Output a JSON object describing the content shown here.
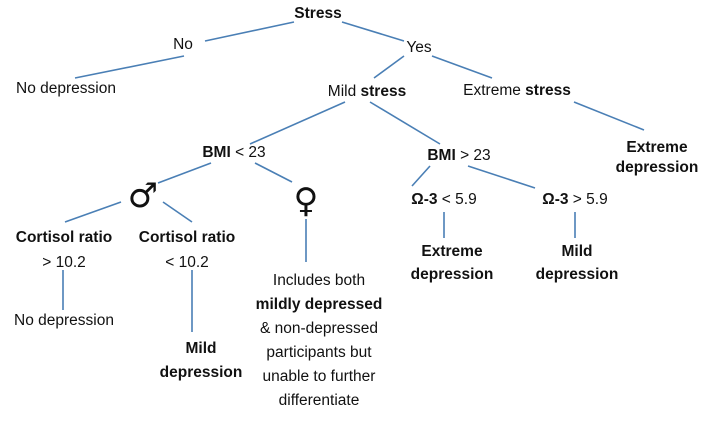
{
  "root": {
    "label": "Stress"
  },
  "no_branch": {
    "label": "No",
    "outcome": "No depression"
  },
  "yes_branch": {
    "label": "Yes"
  },
  "mild_stress": {
    "prefix": "Mild ",
    "bold": "stress"
  },
  "extreme_stress": {
    "prefix": "Extreme ",
    "bold": "stress"
  },
  "extreme_depression_top": {
    "line1": "Extreme",
    "line2": "depression"
  },
  "bmi_low": {
    "bold": "BMI",
    "rest": " < 23"
  },
  "bmi_high": {
    "bold": "BMI",
    "rest": " > 23"
  },
  "male": {
    "symbol": "♂"
  },
  "female": {
    "symbol": "♀"
  },
  "omega_low": {
    "bold": "Ω-3",
    "rest": " < 5.9"
  },
  "omega_high": {
    "bold": "Ω-3",
    "rest": " > 5.9"
  },
  "cortisol_high": {
    "line1": "Cortisol ratio",
    "line2": "> 10.2"
  },
  "cortisol_low": {
    "line1": "Cortisol ratio",
    "line2": "< 10.2"
  },
  "no_depression_bottom": {
    "label": "No depression"
  },
  "mild_depression_bottom": {
    "line1": "Mild",
    "line2": "depression"
  },
  "female_note": {
    "line1": "Includes both",
    "line2": "mildly depressed",
    "line3": "& non-depressed",
    "line4": "participants but",
    "line5": "unable to further",
    "line6": "differentiate"
  },
  "extreme_depression_omega": {
    "line1": "Extreme",
    "line2": "depression"
  },
  "mild_depression_omega": {
    "line1": "Mild",
    "line2": "depression"
  },
  "colors": {
    "edge": "#4a7fb5",
    "text": "#111111"
  }
}
